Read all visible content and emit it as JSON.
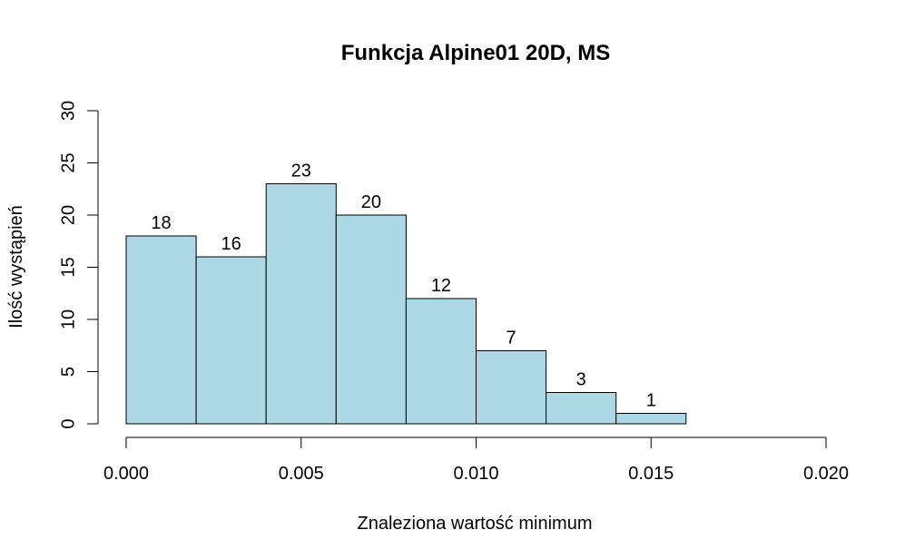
{
  "chart_data": {
    "type": "bar",
    "title": "Funkcja Alpine01 20D, MS",
    "xlabel": "Znaleziona wartość minimum",
    "ylabel": "Ilość wystąpień",
    "bins": [
      {
        "from": 0.0,
        "to": 0.002,
        "value": 18
      },
      {
        "from": 0.002,
        "to": 0.004,
        "value": 16
      },
      {
        "from": 0.004,
        "to": 0.006,
        "value": 23
      },
      {
        "from": 0.006,
        "to": 0.008,
        "value": 20
      },
      {
        "from": 0.008,
        "to": 0.01,
        "value": 12
      },
      {
        "from": 0.01,
        "to": 0.012,
        "value": 7
      },
      {
        "from": 0.012,
        "to": 0.014,
        "value": 3
      },
      {
        "from": 0.014,
        "to": 0.016,
        "value": 1
      }
    ],
    "xlim": [
      0,
      0.02
    ],
    "ylim": [
      0,
      30
    ],
    "xticks": [
      0,
      0.005,
      0.01,
      0.015,
      0.02
    ],
    "xtick_labels": [
      "0.000",
      "0.005",
      "0.010",
      "0.015",
      "0.020"
    ],
    "yticks": [
      0,
      5,
      10,
      15,
      20,
      25,
      30
    ],
    "ytick_labels": [
      "0",
      "5",
      "10",
      "15",
      "20",
      "25",
      "30"
    ],
    "bar_color": "#add8e6",
    "grid": false
  }
}
